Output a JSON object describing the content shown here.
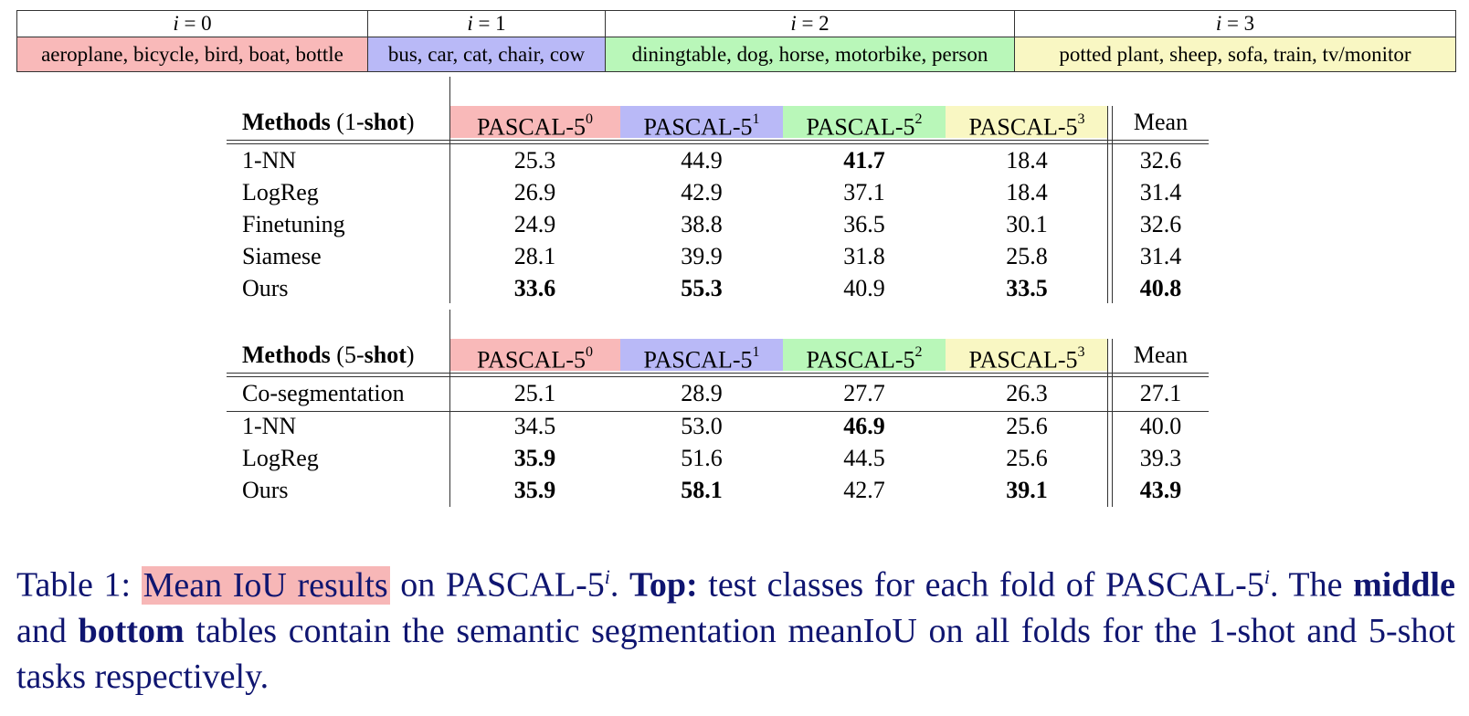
{
  "colors": {
    "fold0": "#f9b9b9",
    "fold1": "#b9b9f7",
    "fold2": "#b9f7b9",
    "fold3": "#f9f7c3",
    "caption_text": "#0f1570",
    "caption_highlight": "#f7b7b7"
  },
  "folds": {
    "headers": [
      {
        "var": "i",
        "eq": " = 0"
      },
      {
        "var": "i",
        "eq": " = 1"
      },
      {
        "var": "i",
        "eq": " = 2"
      },
      {
        "var": "i",
        "eq": " = 3"
      }
    ],
    "classes": [
      "aeroplane, bicycle, bird, boat, bottle",
      "bus, car, cat, chair, cow",
      "diningtable, dog, horse, motorbike, person",
      "potted plant, sheep, sofa, train, tv/monitor"
    ]
  },
  "table1": {
    "method_head_bold": "Methods",
    "method_head_rest_a": " (1-",
    "method_head_shot": "shot",
    "method_head_rest_b": ")",
    "fold_label": "PASCAL-5",
    "fold_sups": [
      "0",
      "1",
      "2",
      "3"
    ],
    "mean_label": "Mean",
    "rows": [
      {
        "method": "1-NN",
        "values": [
          "25.3",
          "44.9",
          "41.7",
          "18.4"
        ],
        "mean": "32.6",
        "bold": [
          false,
          false,
          true,
          false
        ],
        "mean_bold": false
      },
      {
        "method": "LogReg",
        "values": [
          "26.9",
          "42.9",
          "37.1",
          "18.4"
        ],
        "mean": "31.4",
        "bold": [
          false,
          false,
          false,
          false
        ],
        "mean_bold": false
      },
      {
        "method": "Finetuning",
        "values": [
          "24.9",
          "38.8",
          "36.5",
          "30.1"
        ],
        "mean": "32.6",
        "bold": [
          false,
          false,
          false,
          false
        ],
        "mean_bold": false
      },
      {
        "method": "Siamese",
        "values": [
          "28.1",
          "39.9",
          "31.8",
          "25.8"
        ],
        "mean": "31.4",
        "bold": [
          false,
          false,
          false,
          false
        ],
        "mean_bold": false
      },
      {
        "method": "Ours",
        "values": [
          "33.6",
          "55.3",
          "40.9",
          "33.5"
        ],
        "mean": "40.8",
        "bold": [
          true,
          true,
          false,
          true
        ],
        "mean_bold": true
      }
    ]
  },
  "table2": {
    "method_head_bold": "Methods",
    "method_head_rest_a": " (5-",
    "method_head_shot": "shot",
    "method_head_rest_b": ")",
    "fold_label": "PASCAL-5",
    "fold_sups": [
      "0",
      "1",
      "2",
      "3"
    ],
    "mean_label": "Mean",
    "rows": [
      {
        "method": "Co-segmentation",
        "values": [
          "25.1",
          "28.9",
          "27.7",
          "26.3"
        ],
        "mean": "27.1",
        "bold": [
          false,
          false,
          false,
          false
        ],
        "mean_bold": false
      },
      {
        "method": "1-NN",
        "values": [
          "34.5",
          "53.0",
          "46.9",
          "25.6"
        ],
        "mean": "40.0",
        "bold": [
          false,
          false,
          true,
          false
        ],
        "mean_bold": false
      },
      {
        "method": "LogReg",
        "values": [
          "35.9",
          "51.6",
          "44.5",
          "25.6"
        ],
        "mean": "39.3",
        "bold": [
          true,
          false,
          false,
          false
        ],
        "mean_bold": false
      },
      {
        "method": "Ours",
        "values": [
          "35.9",
          "58.1",
          "42.7",
          "39.1"
        ],
        "mean": "43.9",
        "bold": [
          true,
          true,
          false,
          true
        ],
        "mean_bold": true
      }
    ]
  },
  "caption": {
    "prefix": "Table 1: ",
    "highlight": "Mean IoU results",
    "part1": " on PASCAL-5",
    "sup_i": "i",
    "part2": ". ",
    "top_bold": "Top:",
    "part3": " test classes for each fold of PASCAL-5",
    "part4": ". The ",
    "middle_bold": "middle",
    "part5": " and ",
    "bottom_bold": "bottom",
    "part6": " tables contain the semantic segmentation meanIoU on all folds for the 1-shot and 5-shot tasks respectively."
  }
}
